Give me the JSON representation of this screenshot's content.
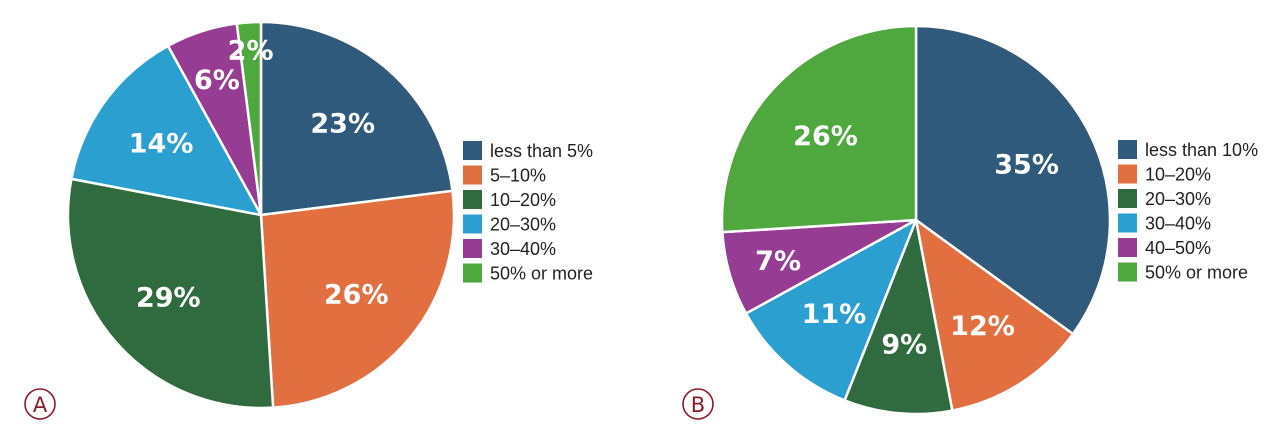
{
  "chart_data": [
    {
      "type": "pie",
      "panel_label": "A",
      "categories": [
        "less than 5%",
        "5–10%",
        "10–20%",
        "20–30%",
        "30–40%",
        "50% or more"
      ],
      "values": [
        23,
        26,
        29,
        14,
        6,
        2
      ],
      "value_labels": [
        "23%",
        "26%",
        "29%",
        "14%",
        "6%",
        "2%"
      ],
      "colors": [
        "#2f5a7c",
        "#e26f3f",
        "#2f6b3e",
        "#2b9fd0",
        "#973c93",
        "#4ea83d"
      ],
      "legend_position": "right"
    },
    {
      "type": "pie",
      "panel_label": "B",
      "categories": [
        "less than 10%",
        "10–20%",
        "20–30%",
        "30–40%",
        "40–50%",
        "50% or more"
      ],
      "values": [
        35,
        12,
        9,
        11,
        7,
        26
      ],
      "value_labels": [
        "35%",
        "12%",
        "9%",
        "11%",
        "7%",
        "26%"
      ],
      "colors": [
        "#2f5a7c",
        "#e26f3f",
        "#2f6b3e",
        "#2b9fd0",
        "#973c93",
        "#4ea83d"
      ],
      "legend_position": "right"
    }
  ]
}
